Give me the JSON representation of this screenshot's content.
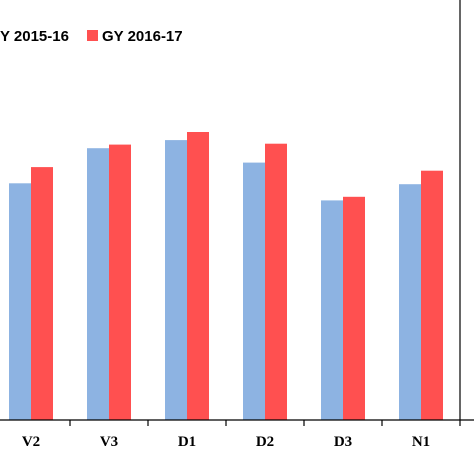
{
  "chart_data": {
    "type": "bar",
    "categories": [
      "V2",
      "V3",
      "D1",
      "D2",
      "D3",
      "N1"
    ],
    "series": [
      {
        "name": "Y 2015-16",
        "color": "#8db3e2",
        "values": [
          263,
          302,
          311,
          286,
          244,
          262
        ]
      },
      {
        "name": "GY 2016-17",
        "color": "#ff5050",
        "values": [
          281,
          306,
          320,
          307,
          248,
          277
        ]
      }
    ],
    "title": "",
    "xlabel": "",
    "ylabel": "",
    "ylim": [
      0,
      350
    ],
    "grid": false,
    "legend_position": "top-left"
  }
}
